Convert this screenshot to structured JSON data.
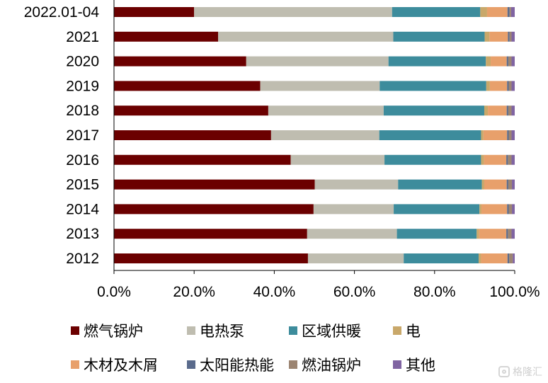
{
  "chart_data": {
    "type": "bar",
    "orientation": "horizontal",
    "stacked": true,
    "categories": [
      "2022.01-04",
      "2021",
      "2020",
      "2019",
      "2018",
      "2017",
      "2016",
      "2015",
      "2014",
      "2013",
      "2012"
    ],
    "series": [
      {
        "name": "燃气锅炉",
        "color": "#6b0000",
        "values": [
          20.0,
          26.0,
          33.0,
          36.5,
          38.5,
          39.2,
          44.1,
          50.1,
          49.8,
          48.2,
          48.4
        ]
      },
      {
        "name": "电热泵",
        "color": "#bfbdb0",
        "values": [
          49.4,
          43.7,
          35.5,
          29.8,
          28.8,
          27.0,
          23.4,
          20.8,
          20.0,
          22.4,
          23.9
        ]
      },
      {
        "name": "区域供暖",
        "color": "#3d8c9c",
        "values": [
          22.0,
          22.8,
          24.3,
          26.6,
          25.1,
          25.4,
          24.1,
          20.9,
          21.4,
          19.9,
          18.7
        ]
      },
      {
        "name": "电",
        "color": "#c9a86a",
        "values": [
          1.7,
          1.2,
          1.2,
          0.9,
          0.9,
          0.6,
          0.7,
          0.6,
          0.5,
          0.6,
          0.6
        ]
      },
      {
        "name": "木材及木屑",
        "color": "#e8a06b",
        "values": [
          5.1,
          4.6,
          4.0,
          4.3,
          4.7,
          5.9,
          5.6,
          5.6,
          6.4,
          6.8,
          6.6
        ]
      },
      {
        "name": "太阳能热能",
        "color": "#5a6b8c",
        "values": [
          0.5,
          0.4,
          0.4,
          0.4,
          0.4,
          0.4,
          0.4,
          0.4,
          0.4,
          0.4,
          0.4
        ]
      },
      {
        "name": "燃油锅炉",
        "color": "#9c8572",
        "values": [
          0.4,
          0.5,
          0.8,
          0.7,
          0.8,
          0.7,
          0.9,
          0.9,
          0.8,
          0.9,
          0.9
        ]
      },
      {
        "name": "其他",
        "color": "#8064a2",
        "values": [
          0.9,
          0.8,
          0.8,
          0.8,
          0.8,
          0.8,
          0.8,
          0.7,
          0.7,
          0.8,
          0.5
        ]
      }
    ],
    "xlim": [
      0,
      100
    ],
    "xticks": [
      "0.0%",
      "20.0%",
      "40.0%",
      "60.0%",
      "80.0%",
      "100.0%"
    ],
    "title": "",
    "xlabel": "",
    "ylabel": "",
    "legend_position": "bottom",
    "grid": false
  },
  "watermark": "格隆汇"
}
